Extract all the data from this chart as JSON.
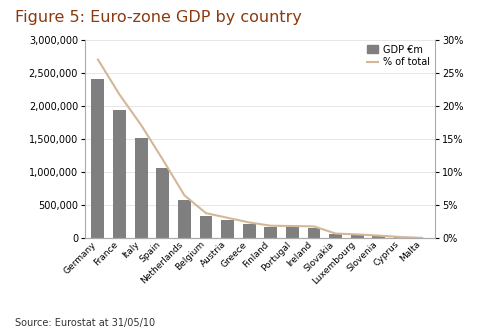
{
  "title": "Figure 5: Euro-zone GDP by country",
  "title_color": "#8B3A10",
  "source": "Source: Eurostat at 31/05/10",
  "categories": [
    "Germany",
    "France",
    "Italy",
    "Spain",
    "Netherlands",
    "Belgium",
    "Austria",
    "Greece",
    "Finland",
    "Portugal",
    "Ireland",
    "Slovakia",
    "Luxembourg",
    "Slovenia",
    "Cyprus",
    "Malta"
  ],
  "gdp_values": [
    2407837,
    1933350,
    1519700,
    1062591,
    579267,
    341216,
    274184,
    218085,
    172318,
    165403,
    160411,
    63854,
    52435,
    36220,
    17405,
    5827
  ],
  "pct_values": [
    0.27,
    0.217,
    0.171,
    0.119,
    0.065,
    0.038,
    0.031,
    0.024,
    0.019,
    0.0186,
    0.018,
    0.0072,
    0.0059,
    0.0041,
    0.002,
    0.00065
  ],
  "bar_color": "#7F7F7F",
  "line_color": "#D4B896",
  "background_color": "#FFFFFF",
  "ylim_left": [
    0,
    3000000
  ],
  "ylim_right": [
    0,
    0.3
  ],
  "legend_labels": [
    "GDP €m",
    "% of total"
  ],
  "figsize": [
    5.0,
    3.31
  ],
  "dpi": 100
}
